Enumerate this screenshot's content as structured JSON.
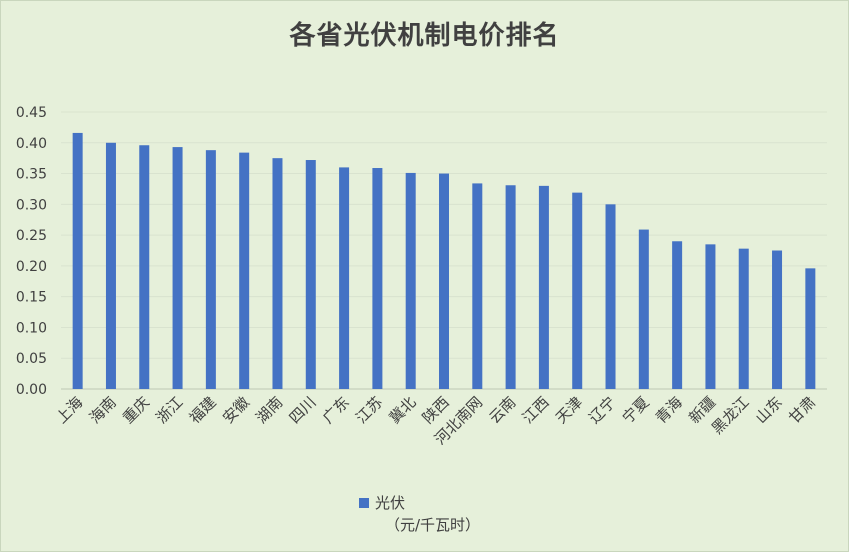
{
  "chart_data": {
    "type": "bar",
    "title": "各省光伏机制电价排名",
    "categories": [
      "上海",
      "海南",
      "重庆",
      "浙江",
      "福建",
      "安徽",
      "湖南",
      "四川",
      "广东",
      "江苏",
      "冀北",
      "陕西",
      "河北南网",
      "云南",
      "江西",
      "天津",
      "辽宁",
      "宁夏",
      "青海",
      "新疆",
      "黑龙江",
      "山东",
      "甘肃"
    ],
    "series": [
      {
        "name": "光伏",
        "values": [
          0.416,
          0.4,
          0.396,
          0.393,
          0.388,
          0.384,
          0.375,
          0.372,
          0.36,
          0.359,
          0.351,
          0.35,
          0.334,
          0.331,
          0.33,
          0.319,
          0.3,
          0.259,
          0.24,
          0.235,
          0.228,
          0.225,
          0.196
        ],
        "color": "#4472c4"
      }
    ],
    "ylim": [
      0,
      0.45
    ],
    "yticks": [
      "0.00",
      "0.05",
      "0.10",
      "0.15",
      "0.20",
      "0.25",
      "0.30",
      "0.35",
      "0.40",
      "0.45"
    ],
    "grid": true,
    "legend_position": "bottom",
    "xlabel": "",
    "ylabel": ""
  },
  "legend": {
    "name": "光伏",
    "unit": "（元/千瓦时）"
  },
  "colors": {
    "background": "#e6f0da",
    "bar": "#4472c4"
  }
}
